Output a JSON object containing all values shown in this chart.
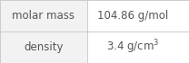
{
  "rows": [
    {
      "label": "molar mass",
      "value": "104.86 g/mol"
    },
    {
      "label": "density",
      "value": "3.4 g/cm$^3$"
    }
  ],
  "background_color": "#ffffff",
  "left_cell_bg": "#f2f2f2",
  "right_cell_bg": "#ffffff",
  "border_color": "#cccccc",
  "text_color": "#555555",
  "font_size": 8.5,
  "col_split": 0.46
}
